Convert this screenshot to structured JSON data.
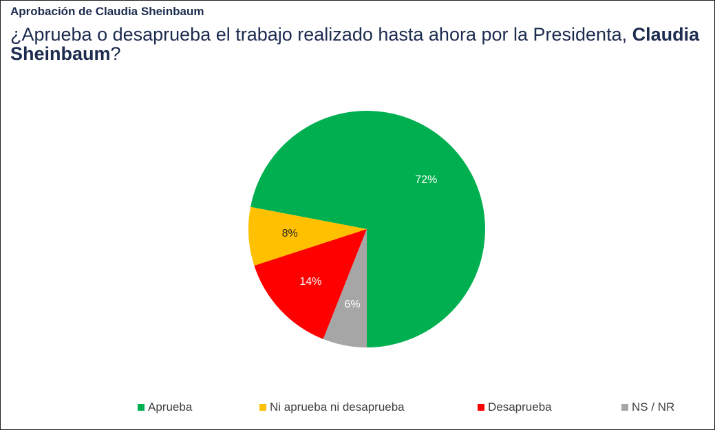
{
  "header": {
    "kicker": "Aprobación de Claudia Sheinbaum",
    "question_prefix": "¿Aprueba o desaprueba el trabajo realizado hasta ahora por la Presidenta, ",
    "question_name": "Claudia Sheinbaum",
    "question_suffix": "?"
  },
  "chart_data": {
    "type": "pie",
    "title": "¿Aprueba o desaprueba el trabajo realizado hasta ahora por la Presidenta, Claudia Sheinbaum?",
    "start": "bottom",
    "direction": "counterclockwise",
    "legend_position": "bottom",
    "slices": [
      {
        "name": "Aprueba",
        "value": 72,
        "label": "72%",
        "color": "#00b050",
        "label_color": "#ffffff"
      },
      {
        "name": "Ni aprueba ni desaprueba",
        "value": 8,
        "label": "8%",
        "color": "#ffc000",
        "label_color": "#262626"
      },
      {
        "name": "Desaprueba",
        "value": 14,
        "label": "14%",
        "color": "#ff0000",
        "label_color": "#ffffff"
      },
      {
        "name": "NS / NR",
        "value": 6,
        "label": "6%",
        "color": "#a6a6a6",
        "label_color": "#ffffff"
      }
    ]
  }
}
